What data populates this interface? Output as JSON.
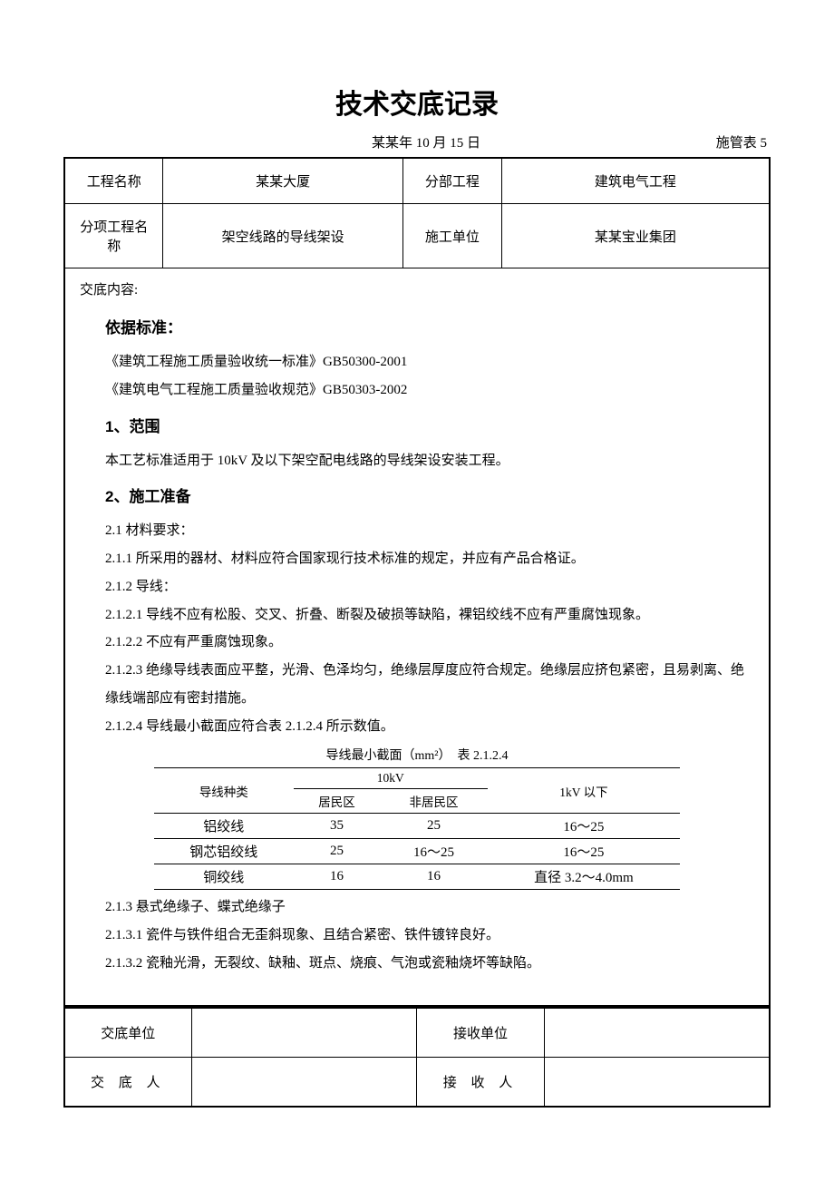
{
  "title": "技术交底记录",
  "date": "某某年 10 月 15 日",
  "table_no": "施管表 5",
  "header_table": {
    "r1c1_label": "工程名称",
    "r1c2_value": "某某大厦",
    "r1c3_label": "分部工程",
    "r1c4_value": "建筑电气工程",
    "r2c1_label": "分项工程名称",
    "r2c2_value": "架空线路的导线架设",
    "r2c3_label": "施工单位",
    "r2c4_value": "某某宝业集团"
  },
  "content": {
    "header": "交底内容:",
    "basis_heading": "依据标准：",
    "basis_1": "《建筑工程施工质量验收统一标准》GB50300-2001",
    "basis_2": "《建筑电气工程施工质量验收规范》GB50303-2002",
    "scope_heading": "1、范围",
    "scope_text": "本工艺标准适用于 10kV 及以下架空配电线路的导线架设安装工程。",
    "prep_heading": "2、施工准备",
    "p_2_1": "2.1 材料要求：",
    "p_2_1_1": "2.1.1 所采用的器材、材料应符合国家现行技术标准的规定，并应有产品合格证。",
    "p_2_1_2": "2.1.2 导线：",
    "p_2_1_2_1": "2.1.2.1 导线不应有松股、交叉、折叠、断裂及破损等缺陷，裸铝绞线不应有严重腐蚀现象。",
    "p_2_1_2_2": "2.1.2.2 不应有严重腐蚀现象。",
    "p_2_1_2_3": "2.1.2.3 绝缘导线表面应平整，光滑、色泽均匀，绝缘层厚度应符合规定。绝缘层应挤包紧密，且易剥离、绝缘线端部应有密封措施。",
    "p_2_1_2_4": "2.1.2.4 导线最小截面应符合表 2.1.2.4 所示数值。",
    "inner_caption": "导线最小截面（mm²）　表 2.1.2.4",
    "inner_table": {
      "h_type": "导线种类",
      "h_10kv": "10kV",
      "h_1kv": "1kV 以下",
      "h_res": "居民区",
      "h_nonres": "非居民区",
      "rows": [
        {
          "type": "铝绞线",
          "res": "35",
          "nonres": "25",
          "below": "16～25"
        },
        {
          "type": "钢芯铝绞线",
          "res": "25",
          "nonres": "16～25",
          "below": "16～25"
        },
        {
          "type": "铜绞线",
          "res": "16",
          "nonres": "16",
          "below": "直径 3.2～4.0mm"
        }
      ]
    },
    "p_2_1_3": "2.1.3 悬式绝缘子、蝶式绝缘子",
    "p_2_1_3_1": "2.1.3.1 瓷件与铁件组合无歪斜现象、且结合紧密、铁件镀锌良好。",
    "p_2_1_3_2": "2.1.3.2 瓷釉光滑，无裂纹、缺釉、斑点、烧痕、气泡或瓷釉烧坏等缺陷。"
  },
  "footer": {
    "r1c1": "交底单位",
    "r1c3": "接收单位",
    "r2c1": "交 底 人",
    "r2c3": "接 收 人"
  }
}
